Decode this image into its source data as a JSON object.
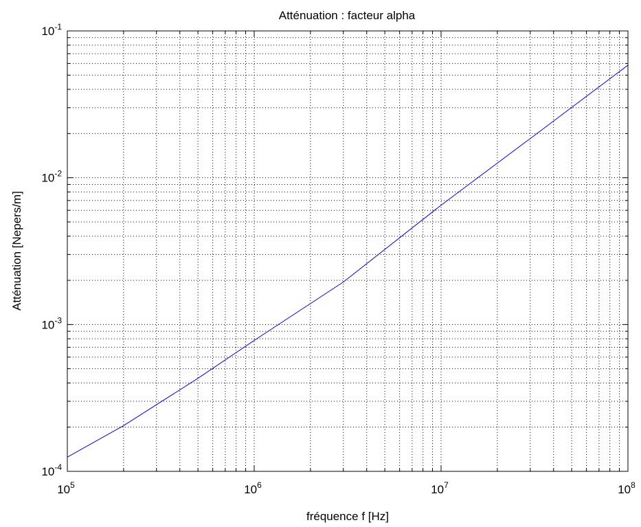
{
  "chart_data": {
    "type": "line",
    "title": "Atténuation : facteur alpha",
    "xlabel": "fréquence f [Hz]",
    "ylabel": "Atténuation [Nepers/m]",
    "xscale": "log",
    "yscale": "log",
    "xlim": [
      100000,
      100000000
    ],
    "ylim": [
      0.0001,
      0.1
    ],
    "grid": true,
    "grid_style": "dotted",
    "x_ticks": [
      {
        "base": "10",
        "exp": "5"
      },
      {
        "base": "10",
        "exp": "6"
      },
      {
        "base": "10",
        "exp": "7"
      },
      {
        "base": "10",
        "exp": "8"
      }
    ],
    "y_ticks": [
      {
        "base": "10",
        "exp": "-4"
      },
      {
        "base": "10",
        "exp": "-3"
      },
      {
        "base": "10",
        "exp": "-2"
      },
      {
        "base": "10",
        "exp": "-1"
      }
    ],
    "series": [
      {
        "color": "#0000ff",
        "x": [
          100000,
          200000,
          500000,
          1000000,
          3000000,
          10000000,
          30000000,
          100000000
        ],
        "y": [
          0.000125,
          0.000205,
          0.00043,
          0.00078,
          0.00195,
          0.0065,
          0.0185,
          0.0585
        ]
      }
    ]
  }
}
